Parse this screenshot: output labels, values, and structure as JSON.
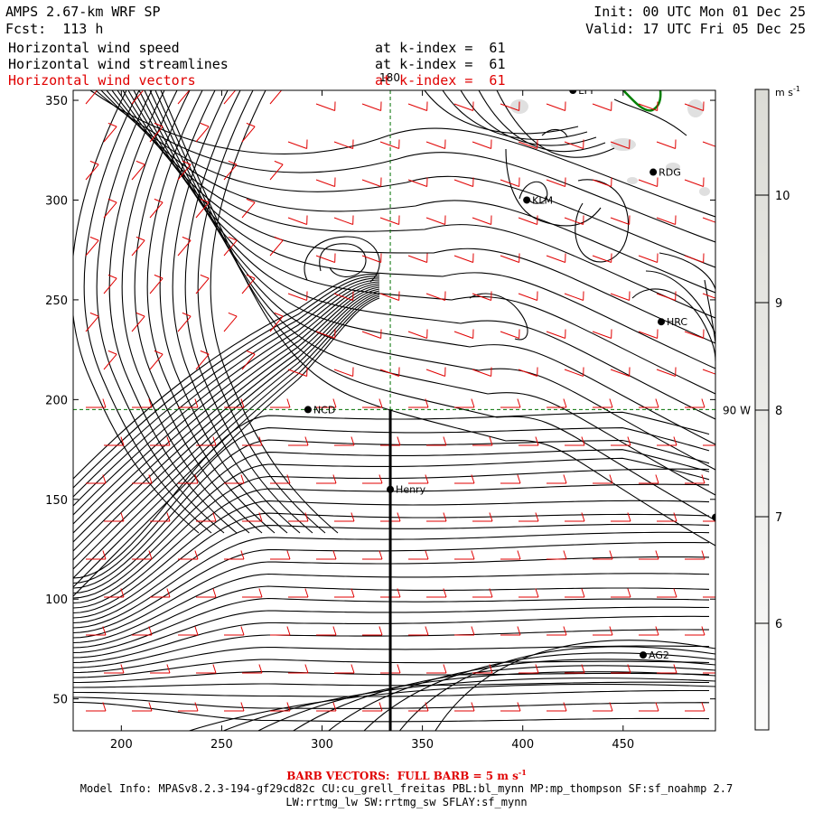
{
  "header": {
    "title": "AMPS 2.67-km WRF SP",
    "forecast": "Fcst:  113 h",
    "init": "Init: 00 UTC Mon 01 Dec 25",
    "valid": "Valid: 17 UTC Fri 05 Dec 25",
    "fields": [
      {
        "label": "Horizontal wind speed",
        "level": "at k-index =  61",
        "color": "#000000"
      },
      {
        "label": "Horizontal wind streamlines",
        "level": "at k-index =  61",
        "color": "#000000"
      },
      {
        "label": "Horizontal wind vectors",
        "level": "at k-index =  61",
        "color": "#e00000"
      }
    ]
  },
  "map": {
    "x_ticks": [
      200,
      250,
      300,
      350,
      400,
      450
    ],
    "y_ticks": [
      50,
      100,
      150,
      200,
      250,
      300,
      350
    ],
    "x_range": [
      176,
      496
    ],
    "y_range": [
      34,
      355
    ],
    "grid_meridian_label": "180",
    "grid_parallel_label": "90 W",
    "grid_meridian_x": 334,
    "grid_parallel_y": 195,
    "cross_section": {
      "x": 334,
      "y_top": 195,
      "y_bottom": 34
    },
    "stations": [
      {
        "name": "LYT",
        "x": 425,
        "y": 355
      },
      {
        "name": "RDG",
        "x": 465,
        "y": 314
      },
      {
        "name": "KLM",
        "x": 402,
        "y": 300
      },
      {
        "name": "HRC",
        "x": 469,
        "y": 239
      },
      {
        "name": "NCD",
        "x": 293,
        "y": 195
      },
      {
        "name": "Henry",
        "x": 334,
        "y": 155
      },
      {
        "name": "",
        "x": 496,
        "y": 141
      },
      {
        "name": "AG2",
        "x": 460,
        "y": 72
      }
    ],
    "colors": {
      "streamline": "#000000",
      "barb": "#e00000",
      "grid": "#007000",
      "coast": "#008000"
    }
  },
  "colorbar": {
    "unit": "m s",
    "unit_sup": "-1",
    "labels": [
      "10",
      "9",
      "8",
      "7",
      "6"
    ]
  },
  "footer": {
    "barb_note": "BARB VECTORS:  FULL BARB = 5 m s",
    "barb_sup": "-1",
    "model_info": "Model Info: MPASv8.2.3-194-gf29cd82c CU:cu_grell_freitas PBL:bl_mynn MP:mp_thompson SF:sf_noahmp 2.7",
    "model_info2": "LW:rrtmg_lw SW:rrtmg_sw SFLAY:sf_mynn"
  }
}
